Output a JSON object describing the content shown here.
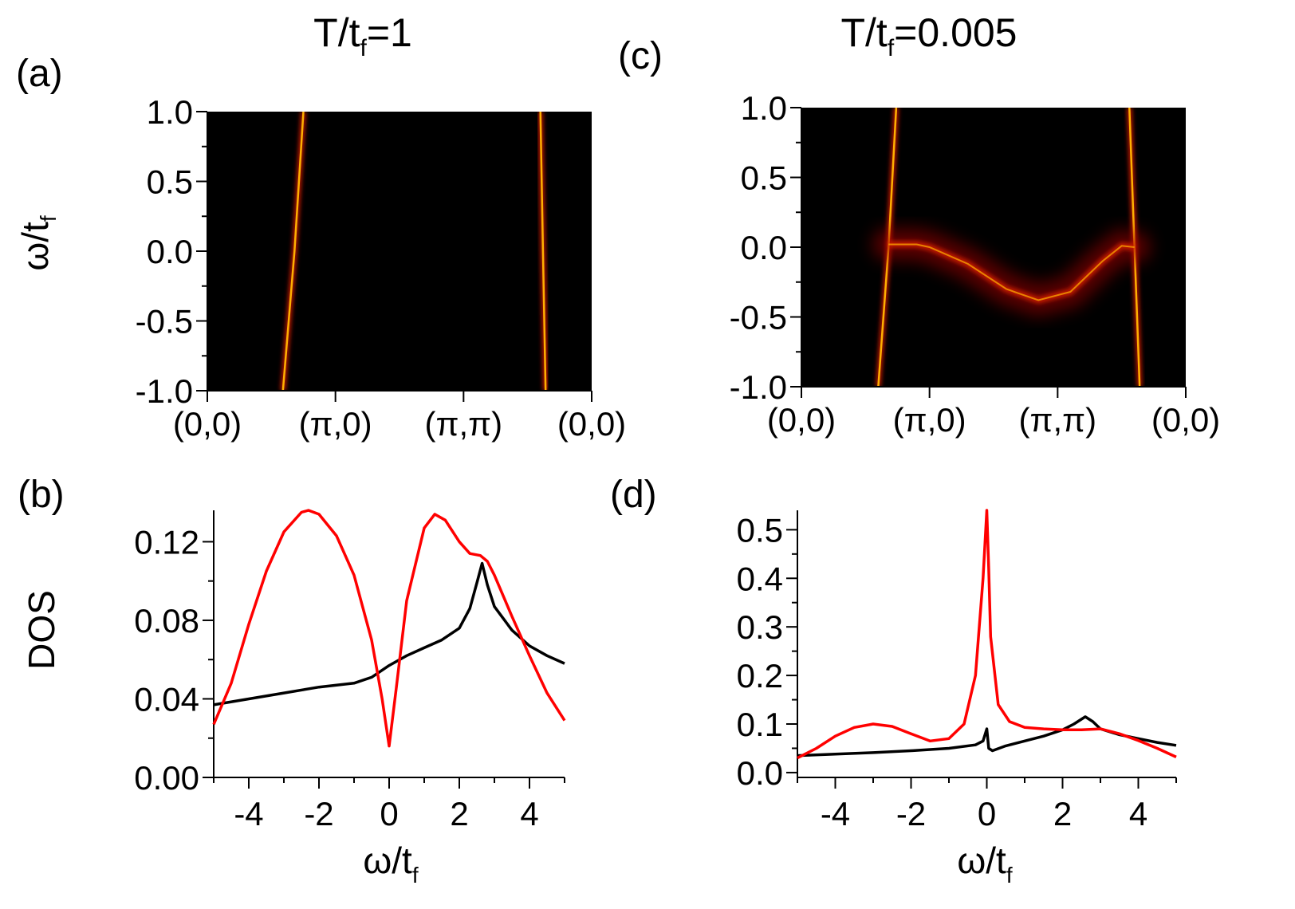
{
  "colors": {
    "red_curve": "#ff0000",
    "black_curve": "#000000",
    "map_background": "#000000",
    "map_band": "#ffb000"
  },
  "chart_data": [
    {
      "id": "a",
      "panel_label": "(a)",
      "type": "heatmap",
      "title": "T/t_f=1",
      "title_parts": {
        "main": "T/t",
        "sub": "f",
        "rest": "=1"
      },
      "ylabel_parts": {
        "main": "ω/t",
        "sub": "f"
      },
      "ylim": [
        -1.0,
        1.0
      ],
      "yticks": [
        1.0,
        0.5,
        0.0,
        -0.5,
        -1.0
      ],
      "ytick_labels": [
        "1.0",
        "0.5",
        "0.0",
        "-0.5",
        "-1.0"
      ],
      "xtick_labels": [
        "(0,0)",
        "(π,0)",
        "(π,π)",
        "(0,0)"
      ],
      "bands": [
        {
          "name": "band-left",
          "points": [
            [
              0.59,
              -1.0
            ],
            [
              0.68,
              0.0
            ],
            [
              0.75,
              1.0
            ]
          ]
        },
        {
          "name": "band-right",
          "points": [
            [
              2.6,
              1.0
            ],
            [
              2.62,
              0.0
            ],
            [
              2.64,
              -1.0
            ]
          ]
        }
      ]
    },
    {
      "id": "c",
      "panel_label": "(c)",
      "type": "heatmap",
      "title": "T/t_f=0.005",
      "title_parts": {
        "main": "T/t",
        "sub": "f",
        "rest": "=0.005"
      },
      "ylim": [
        -1.0,
        1.0
      ],
      "yticks": [
        1.0,
        0.5,
        0.0,
        -0.5,
        -1.0
      ],
      "ytick_labels": [
        "1.0",
        "0.5",
        "0.0",
        "-0.5",
        "-1.0"
      ],
      "xtick_labels": [
        "(0,0)",
        "(π,0)",
        "(π,π)",
        "(0,0)"
      ],
      "bands": [
        {
          "name": "band-left",
          "points": [
            [
              0.6,
              -1.0
            ],
            [
              0.68,
              0.0
            ],
            [
              0.74,
              1.0
            ]
          ]
        },
        {
          "name": "band-right",
          "points": [
            [
              2.56,
              1.0
            ],
            [
              2.6,
              0.0
            ],
            [
              2.64,
              -1.0
            ]
          ]
        },
        {
          "name": "flat-band",
          "points": [
            [
              0.68,
              0.02
            ],
            [
              0.9,
              0.02
            ],
            [
              1.0,
              0.0
            ],
            [
              1.3,
              -0.12
            ],
            [
              1.6,
              -0.3
            ],
            [
              1.85,
              -0.38
            ],
            [
              2.1,
              -0.32
            ],
            [
              2.35,
              -0.1
            ],
            [
              2.5,
              0.01
            ],
            [
              2.6,
              0.0
            ]
          ]
        }
      ]
    },
    {
      "id": "b",
      "panel_label": "(b)",
      "type": "line",
      "xlim": [
        -5,
        5
      ],
      "ylim": [
        0,
        0.136
      ],
      "xticks": [
        -4,
        -2,
        0,
        2,
        4
      ],
      "xtick_labels": [
        "-4",
        "-2",
        "0",
        "2",
        "4"
      ],
      "yticks": [
        0.0,
        0.04,
        0.08,
        0.12
      ],
      "ytick_labels": [
        "0.00",
        "0.04",
        "0.08",
        "0.12"
      ],
      "yminor": [
        0.02,
        0.06,
        0.1
      ],
      "ylabel": "DOS",
      "xlabel_parts": {
        "main": "ω/t",
        "sub": "f"
      },
      "series": [
        {
          "name": "red",
          "color": "#ff0000",
          "x": [
            -5,
            -4.5,
            -4,
            -3.5,
            -3,
            -2.5,
            -2.3,
            -2,
            -1.5,
            -1,
            -0.5,
            -0.2,
            0,
            0.2,
            0.5,
            1,
            1.3,
            1.6,
            2,
            2.3,
            2.6,
            2.8,
            3,
            3.5,
            4,
            4.5,
            5
          ],
          "y": [
            0.027,
            0.048,
            0.078,
            0.105,
            0.125,
            0.135,
            0.136,
            0.134,
            0.123,
            0.103,
            0.07,
            0.04,
            0.016,
            0.045,
            0.09,
            0.127,
            0.134,
            0.131,
            0.12,
            0.114,
            0.113,
            0.11,
            0.103,
            0.082,
            0.062,
            0.043,
            0.029
          ]
        },
        {
          "name": "black",
          "color": "#000000",
          "x": [
            -5,
            -4,
            -3,
            -2,
            -1,
            -0.5,
            0,
            0.5,
            1,
            1.5,
            2,
            2.3,
            2.5,
            2.65,
            2.8,
            3,
            3.5,
            4,
            4.5,
            5
          ],
          "y": [
            0.037,
            0.04,
            0.043,
            0.046,
            0.048,
            0.051,
            0.057,
            0.062,
            0.066,
            0.07,
            0.076,
            0.086,
            0.099,
            0.109,
            0.098,
            0.087,
            0.075,
            0.067,
            0.062,
            0.058
          ]
        }
      ]
    },
    {
      "id": "d",
      "panel_label": "(d)",
      "type": "line",
      "xlim": [
        -5,
        5
      ],
      "ylim": [
        -0.01,
        0.54
      ],
      "xticks": [
        -4,
        -2,
        0,
        2,
        4
      ],
      "xtick_labels": [
        "-4",
        "-2",
        "0",
        "2",
        "4"
      ],
      "yticks": [
        0.0,
        0.1,
        0.2,
        0.3,
        0.4,
        0.5
      ],
      "ytick_labels": [
        "0.0",
        "0.1",
        "0.2",
        "0.3",
        "0.4",
        "0.5"
      ],
      "xlabel_parts": {
        "main": "ω/t",
        "sub": "f"
      },
      "series": [
        {
          "name": "red",
          "color": "#ff0000",
          "x": [
            -5,
            -4.5,
            -4,
            -3.5,
            -3,
            -2.5,
            -2,
            -1.5,
            -1,
            -0.6,
            -0.3,
            -0.1,
            0,
            0.05,
            0.1,
            0.3,
            0.6,
            1,
            1.5,
            2,
            2.5,
            3,
            3.5,
            4,
            4.5,
            5
          ],
          "y": [
            0.03,
            0.05,
            0.075,
            0.093,
            0.1,
            0.095,
            0.08,
            0.065,
            0.07,
            0.1,
            0.2,
            0.4,
            0.54,
            0.42,
            0.28,
            0.14,
            0.105,
            0.093,
            0.09,
            0.088,
            0.088,
            0.09,
            0.08,
            0.066,
            0.05,
            0.032
          ]
        },
        {
          "name": "black",
          "color": "#000000",
          "x": [
            -5,
            -4,
            -3,
            -2,
            -1,
            -0.3,
            -0.1,
            0,
            0.05,
            0.15,
            0.5,
            1,
            1.5,
            2,
            2.3,
            2.6,
            2.8,
            3,
            3.5,
            4,
            4.5,
            5
          ],
          "y": [
            0.035,
            0.038,
            0.041,
            0.045,
            0.05,
            0.057,
            0.065,
            0.09,
            0.05,
            0.045,
            0.055,
            0.065,
            0.075,
            0.088,
            0.1,
            0.115,
            0.105,
            0.09,
            0.078,
            0.07,
            0.062,
            0.056
          ]
        }
      ]
    }
  ]
}
